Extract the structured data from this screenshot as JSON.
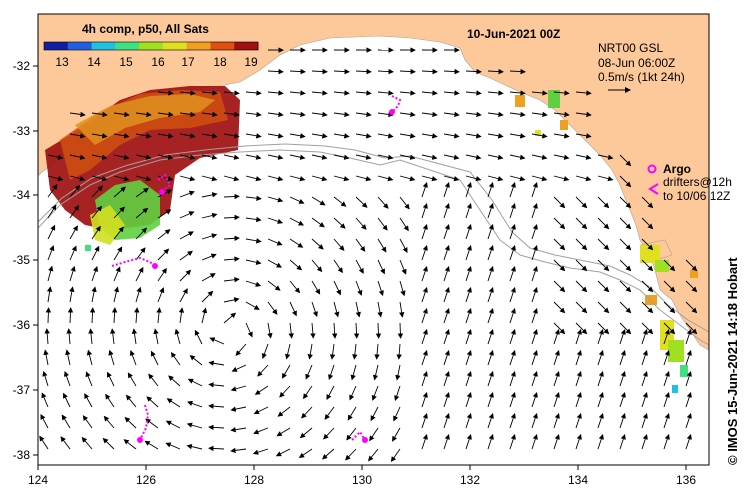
{
  "title": "10-Jun-2021 00Z",
  "colorbar": {
    "label": "4h comp, p50, All Sats",
    "ticks": [
      "13",
      "14",
      "15",
      "16",
      "17",
      "18",
      "19"
    ],
    "colors": [
      "#1020a0",
      "#2060e0",
      "#20c0e0",
      "#40e080",
      "#a0e020",
      "#e0e020",
      "#f0a020",
      "#e05010",
      "#a01010"
    ]
  },
  "product": {
    "line1": "NRT00 GSL",
    "line2": "08-Jun 06:00Z",
    "line3": "0.5m/s (1kt 24h)"
  },
  "legend": {
    "argo_label": "Argo",
    "drifters_line1": "drifters@12h",
    "drifters_line2": "to 10/06 12Z"
  },
  "credit": "© IMOS 15-Jun-2021 14:18 Hobart",
  "axes": {
    "x_ticks": [
      "124",
      "126",
      "128",
      "130",
      "132",
      "134",
      "136"
    ],
    "y_ticks": [
      "-32",
      "-33",
      "-34",
      "-35",
      "-36",
      "-37",
      "-38"
    ]
  },
  "colors": {
    "land": "#fdc99a",
    "ocean": "#ffffff",
    "argo": "#ff00ff",
    "arrow": "#000000",
    "contour": "#a0a0a0"
  }
}
